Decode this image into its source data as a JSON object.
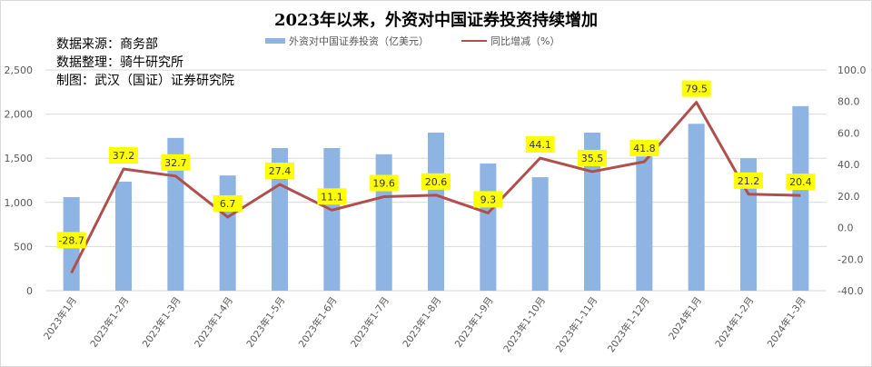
{
  "title": "2023年以来，外资对中国证券投资持续增加",
  "notes": [
    "数据来源：商务部",
    "数据整理：骑牛研究所",
    "制图：武汉（国证）证券研究院"
  ],
  "colors": {
    "bar": "#8eb4e3",
    "line": "#b0504d",
    "label_bg": "#ffff00",
    "grid": "#d9d9d9"
  },
  "chart_data": {
    "type": "bar+line",
    "categories": [
      "2023年1月",
      "2023年1-2月",
      "2023年1-3月",
      "2023年1-4月",
      "2023年1-5月",
      "2023年1-6月",
      "2023年1-7月",
      "2023年1-8月",
      "2023年1-9月",
      "2023年1-10月",
      "2023年1-11月",
      "2023年1-12月",
      "2024年1月",
      "2024年1-2月",
      "2024年1-3月"
    ],
    "series": [
      {
        "name": "外资对中国证券投资（亿美元）",
        "type": "bar",
        "axis": "left",
        "values": [
          1060,
          1235,
          1730,
          1305,
          1615,
          1615,
          1545,
          1790,
          1440,
          1285,
          1790,
          1520,
          1890,
          1500,
          2090
        ]
      },
      {
        "name": "同比增减（%）",
        "type": "line",
        "axis": "right",
        "values": [
          -28.7,
          37.2,
          32.7,
          6.7,
          27.4,
          11.1,
          19.6,
          20.6,
          9.3,
          44.1,
          35.5,
          41.8,
          79.5,
          21.2,
          20.4
        ],
        "labels": [
          "-28.7",
          "37.2",
          "32.7",
          "6.7",
          "27.4",
          "11.1",
          "19.6",
          "20.6",
          "9.3",
          "44.1",
          "35.5",
          "41.8",
          "79.5",
          "21.2",
          "20.4"
        ]
      }
    ],
    "y_left": {
      "range": [
        0,
        2500
      ],
      "ticks": [
        "0",
        "500",
        "1,000",
        "1,500",
        "2,000",
        "2,500"
      ]
    },
    "y_right": {
      "range": [
        -40,
        100
      ],
      "ticks": [
        "-40.0",
        "-20.0",
        "0.0",
        "20.0",
        "40.0",
        "60.0",
        "80.0",
        "100.0"
      ]
    },
    "grid": true,
    "legend_position": "top"
  }
}
